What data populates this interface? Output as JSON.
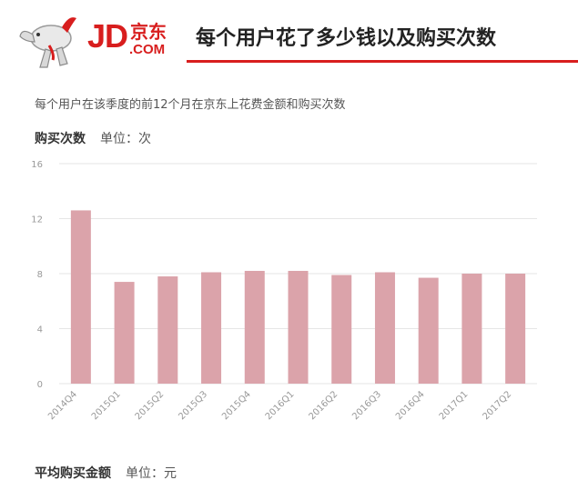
{
  "logo": {
    "jd": "JD",
    "cn": "京东",
    "com": ".COM"
  },
  "title": "每个用户花了多少钱以及购买次数",
  "subtitle": "每个用户在该季度的前12个月在京东上花费金额和购买次数",
  "section1": {
    "name": "购买次数",
    "unit": "单位：次"
  },
  "section2": {
    "name": "平均购买金额",
    "unit": "单位：元"
  },
  "colors": {
    "brand": "#d81e1e",
    "bar": "#dba3aa",
    "grid": "#e6e6e6",
    "tick": "#999999"
  },
  "chart_data": {
    "type": "bar",
    "categories": [
      "2014Q4",
      "2015Q1",
      "2015Q2",
      "2015Q3",
      "2015Q4",
      "2016Q1",
      "2016Q2",
      "2016Q3",
      "2016Q4",
      "2017Q1",
      "2017Q2"
    ],
    "values": [
      12.6,
      7.4,
      7.8,
      8.1,
      8.2,
      8.2,
      7.9,
      8.1,
      7.7,
      8.0,
      8.0
    ],
    "ylim": [
      0,
      16
    ],
    "yticks": [
      "0",
      "4",
      "8",
      "12",
      "16"
    ],
    "grid": true
  }
}
